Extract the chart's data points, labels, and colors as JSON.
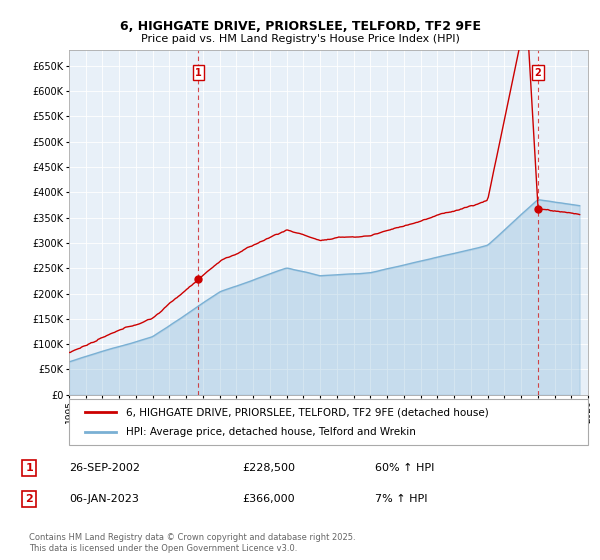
{
  "title_line1": "6, HIGHGATE DRIVE, PRIORSLEE, TELFORD, TF2 9FE",
  "title_line2": "Price paid vs. HM Land Registry's House Price Index (HPI)",
  "ylim": [
    0,
    680000
  ],
  "yticks": [
    0,
    50000,
    100000,
    150000,
    200000,
    250000,
    300000,
    350000,
    400000,
    450000,
    500000,
    550000,
    600000,
    650000
  ],
  "ytick_labels": [
    "£0",
    "£50K",
    "£100K",
    "£150K",
    "£200K",
    "£250K",
    "£300K",
    "£350K",
    "£400K",
    "£450K",
    "£500K",
    "£550K",
    "£600K",
    "£650K"
  ],
  "red_color": "#cc0000",
  "blue_color": "#7ab0d4",
  "blue_fill_color": "#ddeeff",
  "annotation_box_color": "#cc0000",
  "transaction1": {
    "label": "1",
    "date": "26-SEP-2002",
    "price": 228500,
    "pct": "60% ↑ HPI",
    "x_year": 2002.73
  },
  "transaction2": {
    "label": "2",
    "date": "06-JAN-2023",
    "price": 366000,
    "pct": "7% ↑ HPI",
    "x_year": 2023.02
  },
  "legend_line1": "6, HIGHGATE DRIVE, PRIORSLEE, TELFORD, TF2 9FE (detached house)",
  "legend_line2": "HPI: Average price, detached house, Telford and Wrekin",
  "footer": "Contains HM Land Registry data © Crown copyright and database right 2025.\nThis data is licensed under the Open Government Licence v3.0.",
  "xmin": 1995,
  "xmax": 2026,
  "background_color": "#ffffff",
  "plot_bg_color": "#e8f0f8",
  "grid_color": "#ffffff"
}
